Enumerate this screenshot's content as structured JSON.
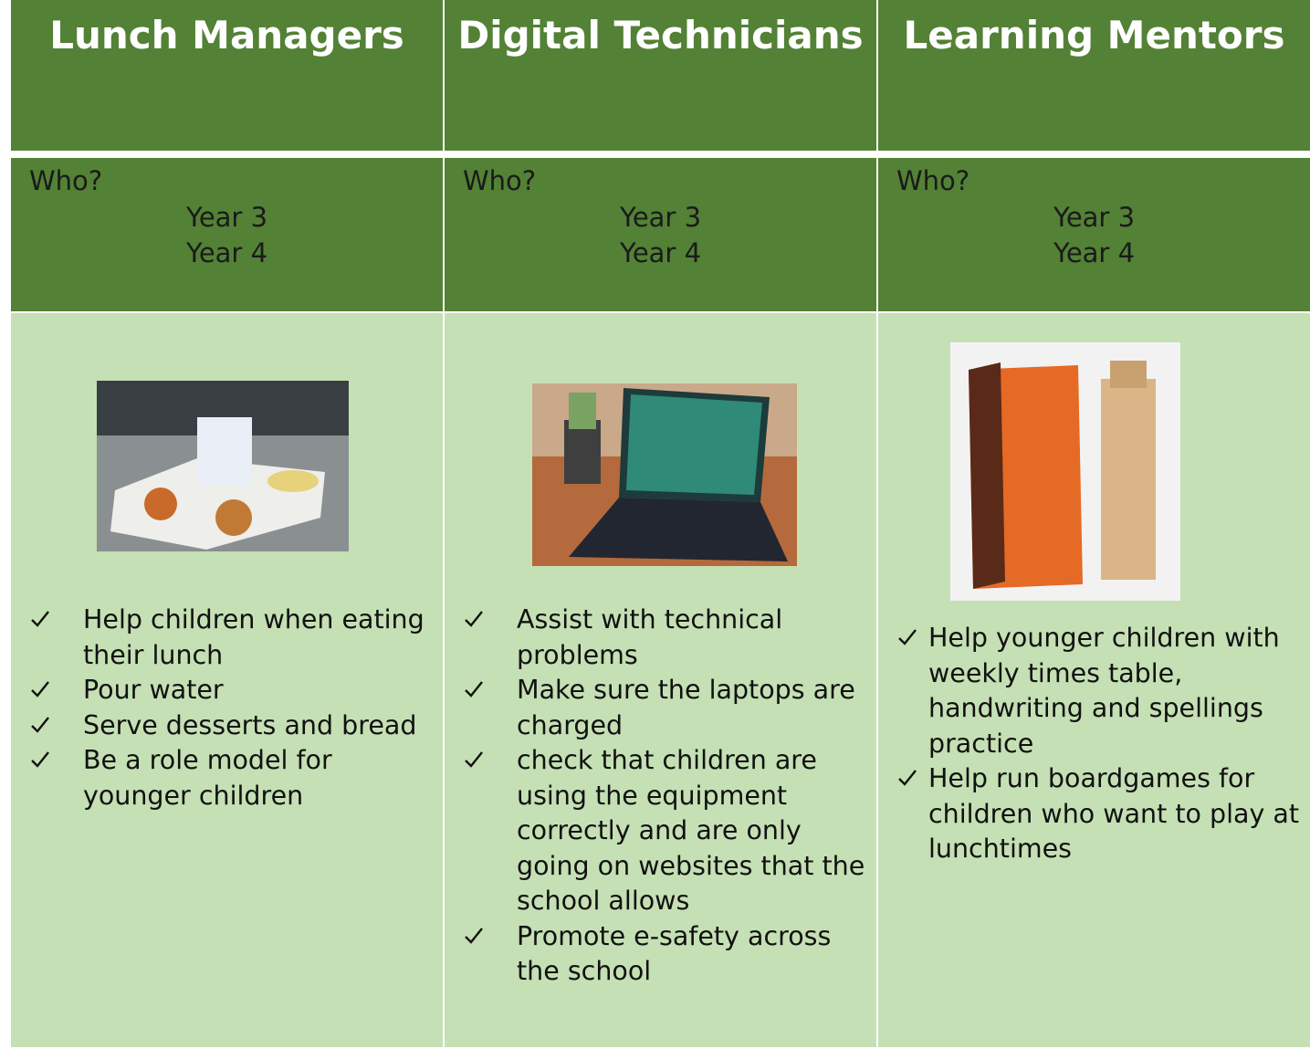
{
  "columns": [
    {
      "title": "Lunch Managers",
      "who": "Who?",
      "years": [
        "Year 3",
        "Year 4"
      ],
      "items": [
        "Help children when eating their lunch",
        "Pour water",
        "Serve desserts and bread",
        "Be a role model for younger children"
      ]
    },
    {
      "title": "Digital Technicians",
      "who": "Who?",
      "years": [
        "Year 3",
        "Year 4"
      ],
      "items": [
        "Assist with technical problems",
        "Make sure the laptops are charged",
        "check that children are using the equipment correctly and are only going on websites that the school allows",
        "Promote e-safety across the school"
      ]
    },
    {
      "title": "Learning Mentors",
      "who": "Who?",
      "years": [
        "Year 3",
        "Year 4"
      ],
      "items": [
        "Help younger children with weekly times table, handwriting and spellings practice",
        "Help run boardgames for children who want to play at lunchtimes"
      ]
    }
  ]
}
